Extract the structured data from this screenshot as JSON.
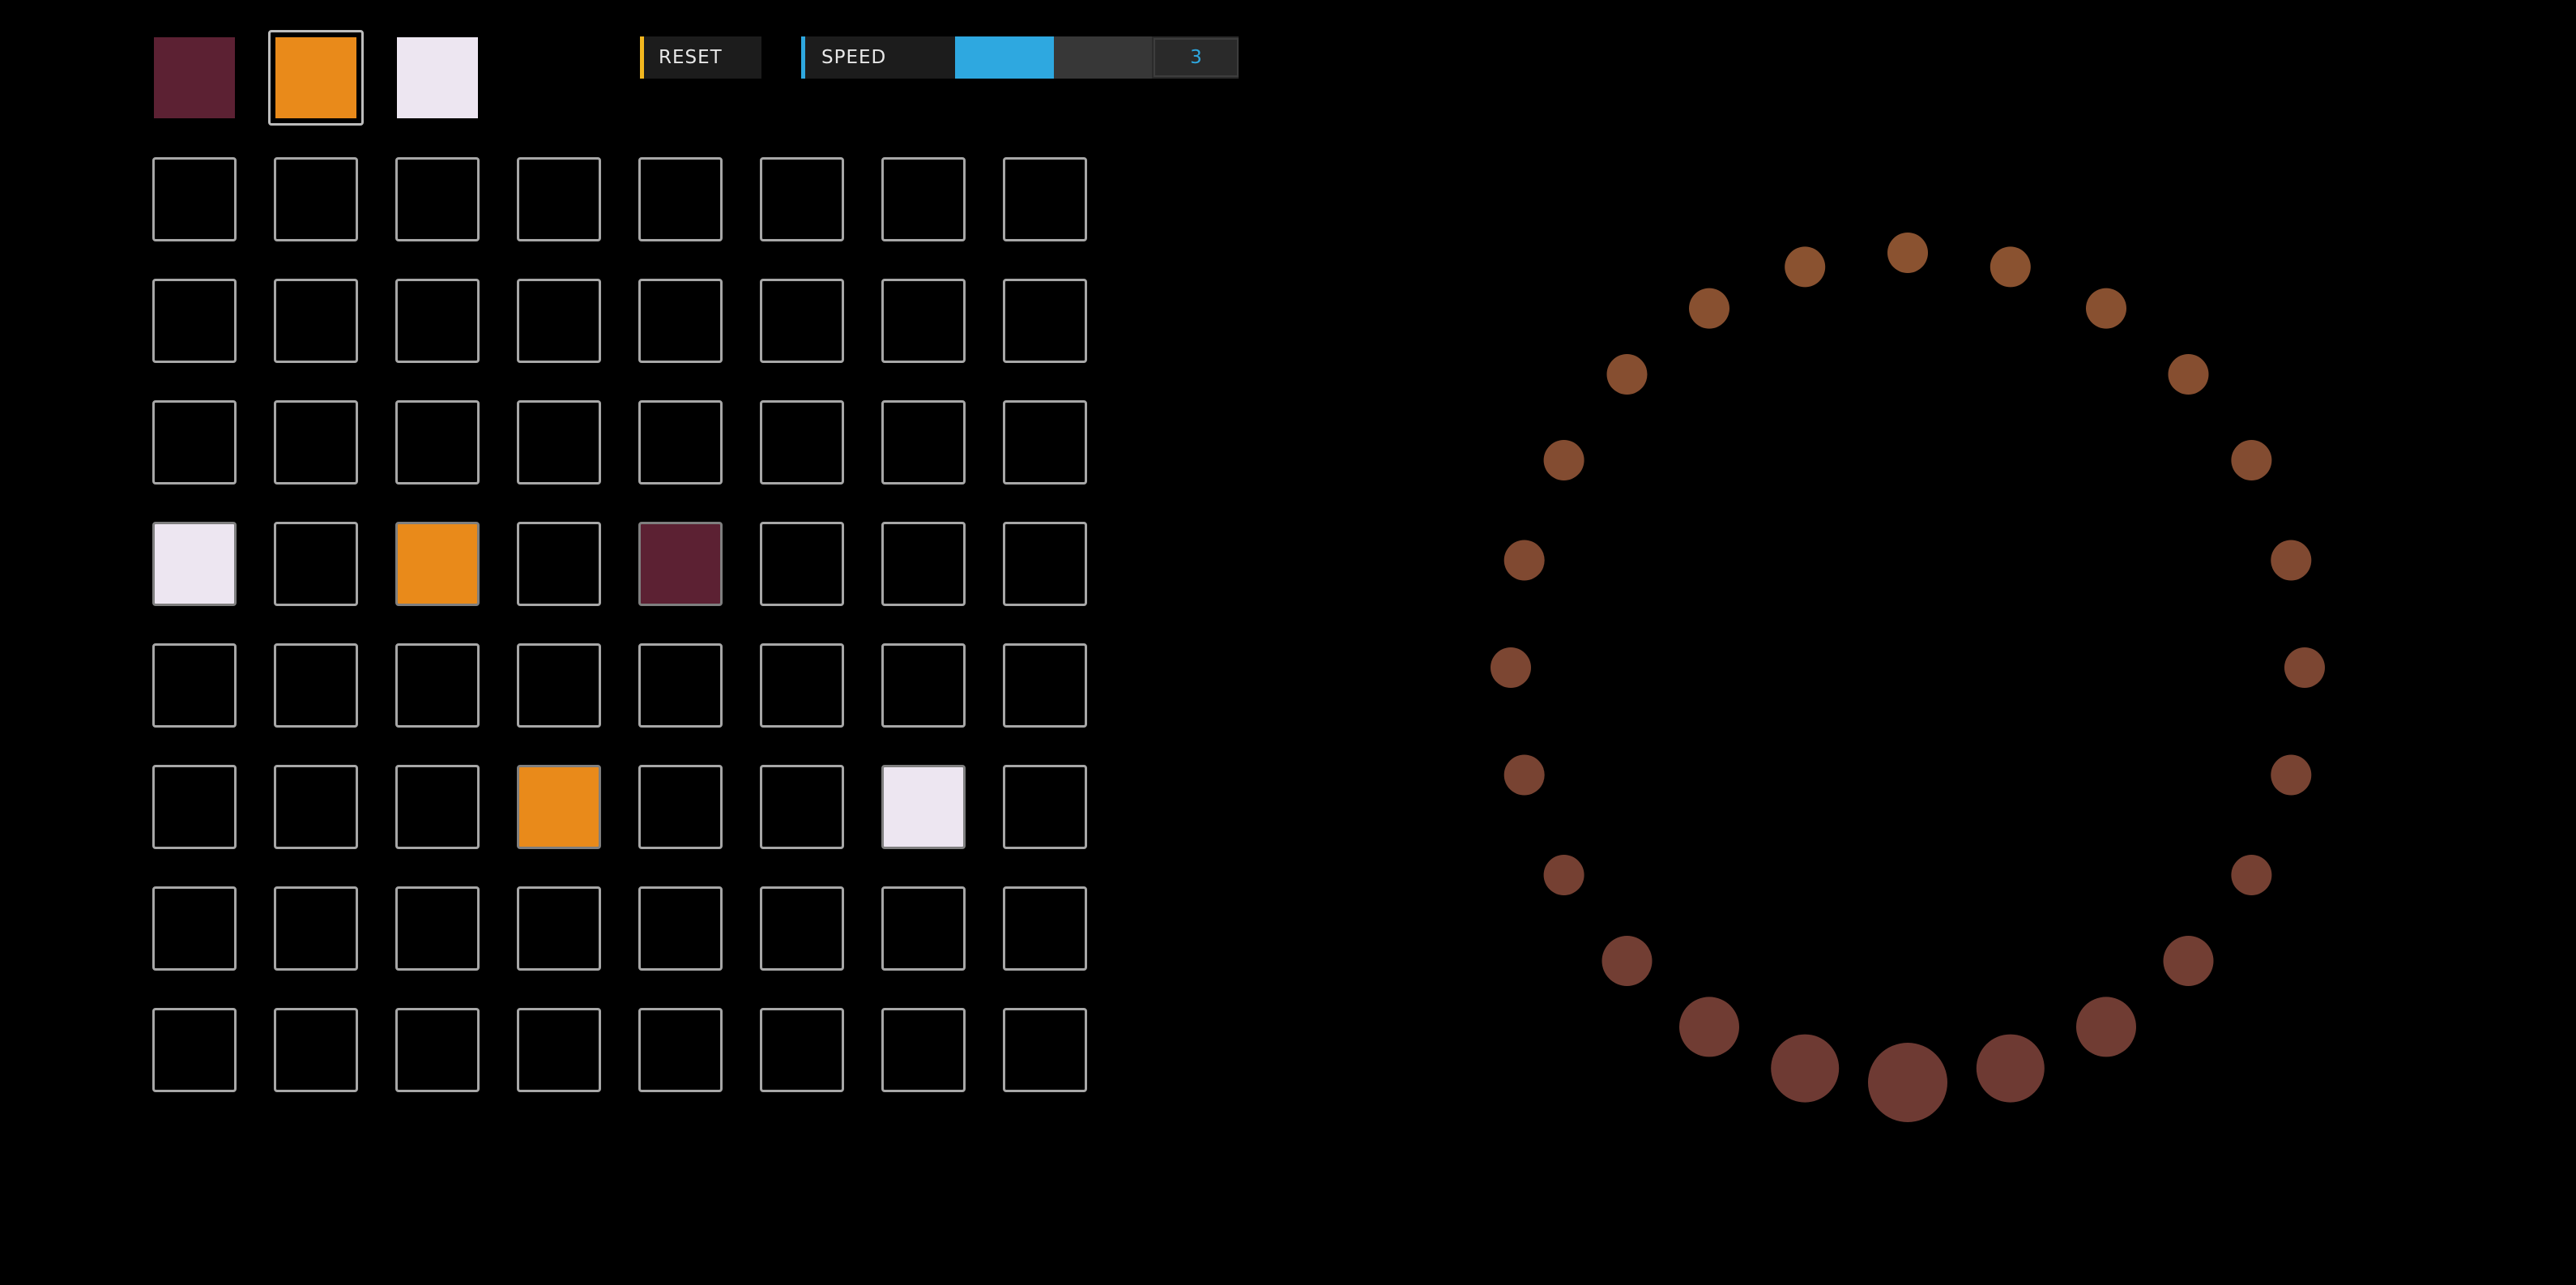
{
  "palette": {
    "selected_index": 1,
    "colors": [
      "#5c2133",
      "#e98a1a",
      "#ede6f1"
    ]
  },
  "controls": {
    "reset_label": "RESET",
    "speed_label": "SPEED",
    "speed_value": "3",
    "speed_fraction": 0.5,
    "accent_reset": "#f2b71f",
    "accent_speed": "#2ea8e0"
  },
  "grid": {
    "rows": 8,
    "cols": 8,
    "filled": [
      {
        "row": 3,
        "col": 0,
        "color_index": 2
      },
      {
        "row": 3,
        "col": 2,
        "color_index": 1
      },
      {
        "row": 3,
        "col": 4,
        "color_index": 0
      },
      {
        "row": 5,
        "col": 3,
        "color_index": 1
      },
      {
        "row": 5,
        "col": 6,
        "color_index": 2
      }
    ]
  },
  "ring": {
    "dot_count": 24,
    "dot_color_top": "#8a5230",
    "dot_color_bottom": "#6e3a33"
  }
}
